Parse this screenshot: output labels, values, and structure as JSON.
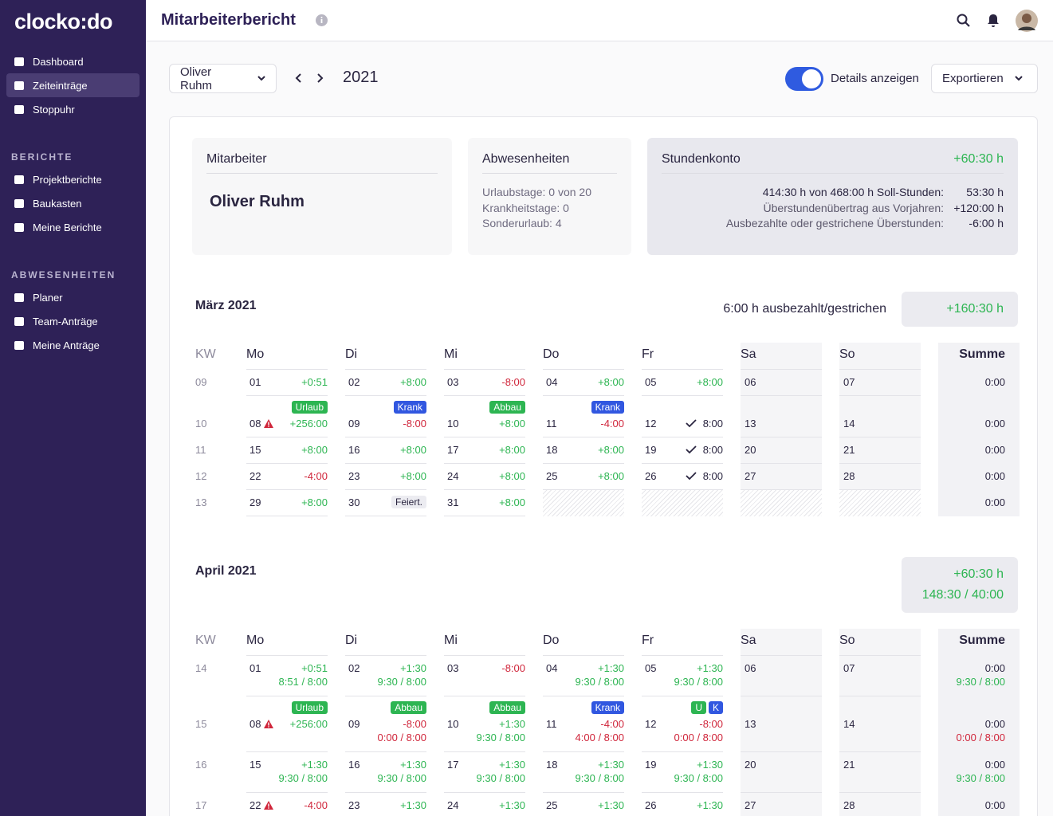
{
  "sidebar": {
    "logo": "clocko:do",
    "items": [
      "Dashboard",
      "Zeiteinträge",
      "Stoppuhr"
    ],
    "sections": [
      {
        "title": "BERICHTE",
        "items": [
          "Projektberichte",
          "Baukasten",
          "Meine Berichte"
        ]
      },
      {
        "title": "ABWESENHEITEN",
        "items": [
          "Planer",
          "Team-Anträge",
          "Meine Anträge"
        ]
      }
    ]
  },
  "header": {
    "title": "Mitarbeiterbericht"
  },
  "controls": {
    "employee": "Oliver Ruhm",
    "year": "2021",
    "toggle": "Details anzeigen",
    "export": "Exportieren"
  },
  "summary": {
    "employee": {
      "title": "Mitarbeiter",
      "name": "Oliver Ruhm"
    },
    "absences": {
      "title": "Abwesenheiten",
      "lines": [
        "Urlaubstage: 0 von 20",
        "Krankheitstage: 0",
        "Sonderurlaub: 4"
      ]
    },
    "account": {
      "title": "Stundenkonto",
      "total": "+60:30 h",
      "rows": [
        {
          "label": "414:30 h von 468:00 h Soll-Stunden:",
          "value": "53:30 h"
        },
        {
          "label": "Überstundenübertrag aus Vorjahren:",
          "value": "+120:00 h"
        },
        {
          "label": "Ausbezahlte oder gestrichene Überstunden:",
          "value": "-6:00 h"
        }
      ]
    }
  },
  "months": [
    {
      "title": "März 2021",
      "note": "6:00 h ausbezahlt/gestrichen",
      "totals": [
        "+160:30 h"
      ],
      "headers": [
        "KW",
        "Mo",
        "Di",
        "Mi",
        "Do",
        "Fr",
        "Sa",
        "So",
        "Summe"
      ],
      "weeks": [
        {
          "kw": "09",
          "days": [
            {
              "d": "01",
              "v": "+0:51"
            },
            {
              "d": "02",
              "v": "+8:00"
            },
            {
              "d": "03",
              "v": "-8:00"
            },
            {
              "d": "04",
              "v": "+8:00"
            },
            {
              "d": "05",
              "v": "+8:00"
            },
            {
              "d": "06"
            },
            {
              "d": "07"
            }
          ],
          "sum": {
            "v": "0:00"
          }
        },
        {
          "kw": "10",
          "days": [
            {
              "d": "08",
              "v": "+256:00",
              "warn": true,
              "badges": [
                {
                  "text": "Urlaub",
                  "color": "#2db552"
                }
              ]
            },
            {
              "d": "09",
              "v": "-8:00",
              "badges": [
                {
                  "text": "Krank",
                  "color": "#3157e0"
                }
              ]
            },
            {
              "d": "10",
              "v": "+8:00",
              "badges": [
                {
                  "text": "Abbau",
                  "color": "#2db552"
                }
              ]
            },
            {
              "d": "11",
              "v": "-4:00",
              "badges": [
                {
                  "text": "Krank",
                  "color": "#3157e0"
                }
              ]
            },
            {
              "d": "12",
              "v": "8:00",
              "check": true
            },
            {
              "d": "13"
            },
            {
              "d": "14"
            }
          ],
          "sum": {
            "v": "0:00"
          }
        },
        {
          "kw": "11",
          "days": [
            {
              "d": "15",
              "v": "+8:00"
            },
            {
              "d": "16",
              "v": "+8:00"
            },
            {
              "d": "17",
              "v": "+8:00"
            },
            {
              "d": "18",
              "v": "+8:00"
            },
            {
              "d": "19",
              "v": "8:00",
              "check": true
            },
            {
              "d": "20"
            },
            {
              "d": "21"
            }
          ],
          "sum": {
            "v": "0:00"
          }
        },
        {
          "kw": "12",
          "days": [
            {
              "d": "22",
              "v": "-4:00"
            },
            {
              "d": "23",
              "v": "+8:00"
            },
            {
              "d": "24",
              "v": "+8:00"
            },
            {
              "d": "25",
              "v": "+8:00"
            },
            {
              "d": "26",
              "v": "8:00",
              "check": true
            },
            {
              "d": "27"
            },
            {
              "d": "28"
            }
          ],
          "sum": {
            "v": "0:00"
          }
        },
        {
          "kw": "13",
          "days": [
            {
              "d": "29",
              "v": "+8:00"
            },
            {
              "d": "30",
              "tag": "Feiert."
            },
            {
              "d": "31",
              "v": "+8:00"
            },
            {
              "hatched": true
            },
            {
              "hatched": true
            },
            {
              "hatched": true
            },
            {
              "hatched": true
            }
          ],
          "sum": {
            "v": "0:00"
          }
        }
      ]
    },
    {
      "title": "April 2021",
      "totals": [
        "+60:30 h",
        "148:30 / 40:00"
      ],
      "headers": [
        "KW",
        "Mo",
        "Di",
        "Mi",
        "Do",
        "Fr",
        "Sa",
        "So",
        "Summe"
      ],
      "weeks": [
        {
          "kw": "14",
          "days": [
            {
              "d": "01",
              "v": "+0:51",
              "sub": "8:51 / 8:00",
              "sub_color": "#2db552"
            },
            {
              "d": "02",
              "v": "+1:30",
              "sub": "9:30 / 8:00",
              "sub_color": "#2db552"
            },
            {
              "d": "03",
              "v": "-8:00"
            },
            {
              "d": "04",
              "v": "+1:30",
              "sub": "9:30 / 8:00",
              "sub_color": "#2db552"
            },
            {
              "d": "05",
              "v": "+1:30",
              "sub": "9:30 / 8:00",
              "sub_color": "#2db552"
            },
            {
              "d": "06"
            },
            {
              "d": "07"
            }
          ],
          "sum": {
            "v": "0:00",
            "sub": "9:30 / 8:00",
            "sub_color": "#2db552"
          }
        },
        {
          "kw": "15",
          "days": [
            {
              "d": "08",
              "v": "+256:00",
              "warn": true,
              "badges": [
                {
                  "text": "Urlaub",
                  "color": "#2db552"
                }
              ]
            },
            {
              "d": "09",
              "v": "-8:00",
              "sub": "0:00 / 8:00",
              "sub_color": "#d0263b",
              "badges": [
                {
                  "text": "Abbau",
                  "color": "#2db552"
                }
              ]
            },
            {
              "d": "10",
              "v": "+1:30",
              "sub": "9:30 / 8:00",
              "sub_color": "#2db552",
              "badges": [
                {
                  "text": "Abbau",
                  "color": "#2db552"
                }
              ]
            },
            {
              "d": "11",
              "v": "-4:00",
              "sub": "4:00 / 8:00",
              "sub_color": "#d0263b",
              "badges": [
                {
                  "text": "Krank",
                  "color": "#3157e0"
                }
              ]
            },
            {
              "d": "12",
              "v": "-8:00",
              "sub": "0:00 / 8:00",
              "sub_color": "#d0263b",
              "badges": [
                {
                  "text": "U",
                  "color": "#2db552"
                },
                {
                  "text": "K",
                  "color": "#3157e0"
                }
              ]
            },
            {
              "d": "13"
            },
            {
              "d": "14"
            }
          ],
          "sum": {
            "v": "0:00",
            "sub": "0:00 / 8:00",
            "sub_color": "#d0263b"
          }
        },
        {
          "kw": "16",
          "days": [
            {
              "d": "15",
              "v": "+1:30",
              "sub": "9:30 / 8:00",
              "sub_color": "#2db552"
            },
            {
              "d": "16",
              "v": "+1:30",
              "sub": "9:30 / 8:00",
              "sub_color": "#2db552"
            },
            {
              "d": "17",
              "v": "+1:30",
              "sub": "9:30 / 8:00",
              "sub_color": "#2db552"
            },
            {
              "d": "18",
              "v": "+1:30",
              "sub": "9:30 / 8:00",
              "sub_color": "#2db552"
            },
            {
              "d": "19",
              "v": "+1:30",
              "sub": "9:30 / 8:00",
              "sub_color": "#2db552"
            },
            {
              "d": "20"
            },
            {
              "d": "21"
            }
          ],
          "sum": {
            "v": "0:00",
            "sub": "9:30 / 8:00",
            "sub_color": "#2db552"
          }
        },
        {
          "kw": "17",
          "days": [
            {
              "d": "22",
              "v": "-4:00",
              "warn": true
            },
            {
              "d": "23",
              "v": "+1:30"
            },
            {
              "d": "24",
              "v": "+1:30"
            },
            {
              "d": "25",
              "v": "+1:30"
            },
            {
              "d": "26",
              "v": "+1:30"
            },
            {
              "d": "27"
            },
            {
              "d": "28"
            }
          ],
          "sum": {
            "v": "0:00"
          }
        }
      ]
    }
  ]
}
